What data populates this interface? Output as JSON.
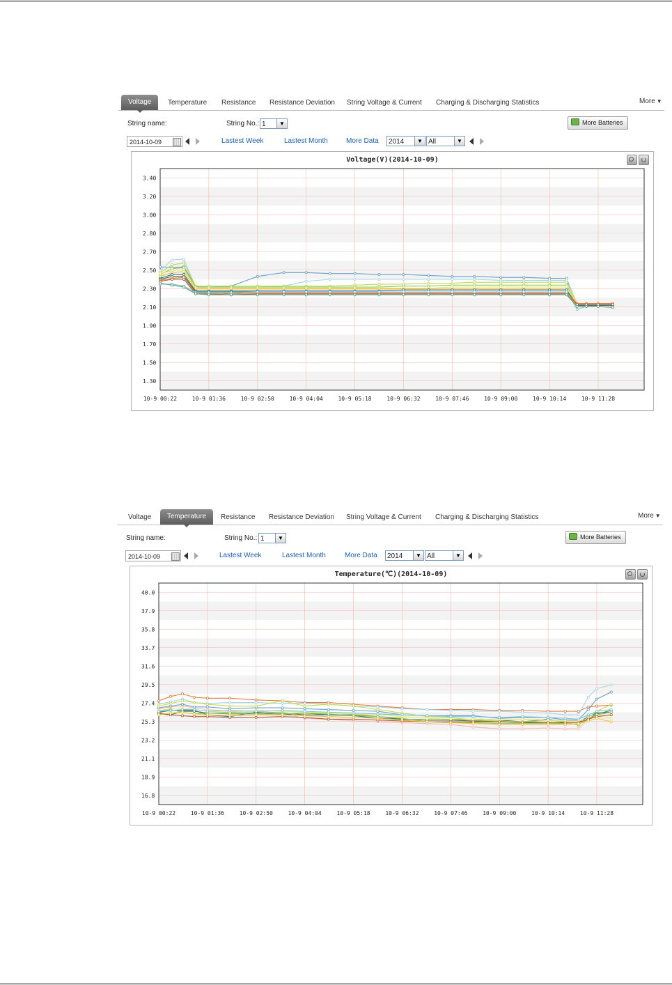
{
  "tabs": [
    "Voltage",
    "Temperature",
    "Resistance",
    "Resistance Deviation",
    "String Voltage & Current",
    "Charging & Discharging Statistics"
  ],
  "more_label": "More",
  "string_name_label": "String name:",
  "string_no_label": "String No.:",
  "string_no_value": "1",
  "more_batteries_label": "More Batteries",
  "date_value": "2014-10-09",
  "links": {
    "week": "Lastest Week",
    "month": "Lastest Month",
    "more_data": "More Data"
  },
  "year_value": "2014",
  "filter_value": "All",
  "panels": [
    {
      "active_tab": "Voltage",
      "chart_title": "Voltage(V)(2014-10-09)"
    },
    {
      "active_tab": "Temperature",
      "chart_title": "Temperature(℃)(2014-10-09)"
    }
  ],
  "colors": {
    "grid_red": "#f2b8b0",
    "band": "#f3f3f3",
    "link": "#1a5fa8",
    "tab_active": "#6e6e6e"
  },
  "icons": {
    "zoom": "zoom-icon",
    "refresh": "refresh-icon",
    "calendar": "calendar-icon",
    "battery": "battery-icon"
  },
  "chart_data": [
    {
      "type": "line",
      "title": "Voltage(V)(2014-10-09)",
      "y_ticks": [
        "3.40",
        "3.20",
        "3.00",
        "2.80",
        "2.70",
        "2.50",
        "2.30",
        "2.10",
        "1.90",
        "1.70",
        "1.50",
        "1.30"
      ],
      "x_ticks": [
        "10-9 00:22",
        "10-9 01:36",
        "10-9 02:50",
        "10-9 04:04",
        "10-9 05:18",
        "10-9 06:32",
        "10-9 07:46",
        "10-9 09:00",
        "10-9 10:14",
        "10-9 11:28"
      ],
      "grid": true,
      "x": [
        "00:22",
        "00:40",
        "00:58",
        "01:16",
        "01:36",
        "02:10",
        "02:50",
        "03:30",
        "04:04",
        "04:40",
        "05:18",
        "05:55",
        "06:32",
        "07:10",
        "07:46",
        "08:20",
        "09:00",
        "09:35",
        "10:14",
        "10:40",
        "10:56",
        "11:10",
        "11:28",
        "11:50"
      ],
      "series": [
        {
          "color": "#6a9fc9",
          "values": [
            2.48,
            2.47,
            2.48,
            2.28,
            2.27,
            2.28,
            2.38,
            2.42,
            2.42,
            2.41,
            2.41,
            2.4,
            2.4,
            2.39,
            2.38,
            2.38,
            2.37,
            2.37,
            2.36,
            2.36,
            2.08,
            2.08,
            2.08,
            2.08
          ]
        },
        {
          "color": "#a8d4e8",
          "values": [
            2.44,
            2.55,
            2.56,
            2.27,
            2.27,
            2.27,
            2.27,
            2.28,
            2.33,
            2.35,
            2.35,
            2.35,
            2.35,
            2.35,
            2.35,
            2.35,
            2.34,
            2.34,
            2.34,
            2.34,
            2.1,
            2.1,
            2.1,
            2.1
          ]
        },
        {
          "color": "#c2d94c",
          "values": [
            2.42,
            2.5,
            2.52,
            2.28,
            2.28,
            2.28,
            2.28,
            2.28,
            2.28,
            2.28,
            2.29,
            2.3,
            2.3,
            2.31,
            2.31,
            2.32,
            2.32,
            2.32,
            2.32,
            2.32,
            2.1,
            2.1,
            2.1,
            2.1
          ]
        },
        {
          "color": "#8fc85a",
          "values": [
            2.4,
            2.46,
            2.47,
            2.27,
            2.27,
            2.27,
            2.27,
            2.27,
            2.27,
            2.27,
            2.27,
            2.27,
            2.28,
            2.28,
            2.29,
            2.29,
            2.29,
            2.29,
            2.29,
            2.29,
            2.09,
            2.09,
            2.09,
            2.09
          ]
        },
        {
          "color": "#e8e86a",
          "values": [
            2.41,
            2.44,
            2.45,
            2.26,
            2.26,
            2.26,
            2.26,
            2.26,
            2.26,
            2.26,
            2.26,
            2.26,
            2.26,
            2.26,
            2.27,
            2.27,
            2.27,
            2.27,
            2.27,
            2.27,
            2.1,
            2.1,
            2.1,
            2.1
          ]
        },
        {
          "color": "#f0c040",
          "values": [
            2.38,
            2.42,
            2.43,
            2.25,
            2.25,
            2.25,
            2.25,
            2.25,
            2.25,
            2.25,
            2.25,
            2.25,
            2.25,
            2.25,
            2.25,
            2.25,
            2.25,
            2.25,
            2.25,
            2.25,
            2.09,
            2.09,
            2.09,
            2.09
          ]
        },
        {
          "color": "#2e6e9e",
          "values": [
            2.36,
            2.4,
            2.4,
            2.23,
            2.23,
            2.23,
            2.23,
            2.23,
            2.23,
            2.23,
            2.23,
            2.23,
            2.24,
            2.24,
            2.24,
            2.24,
            2.24,
            2.24,
            2.24,
            2.24,
            2.08,
            2.08,
            2.08,
            2.08
          ]
        },
        {
          "color": "#3f7f3f",
          "values": [
            2.35,
            2.38,
            2.38,
            2.22,
            2.22,
            2.22,
            2.22,
            2.22,
            2.22,
            2.22,
            2.22,
            2.22,
            2.22,
            2.22,
            2.22,
            2.22,
            2.22,
            2.22,
            2.22,
            2.22,
            2.09,
            2.09,
            2.09,
            2.09
          ]
        },
        {
          "color": "#e07a40",
          "values": [
            2.34,
            2.36,
            2.37,
            2.21,
            2.21,
            2.2,
            2.21,
            2.21,
            2.21,
            2.21,
            2.21,
            2.21,
            2.21,
            2.21,
            2.21,
            2.21,
            2.21,
            2.21,
            2.21,
            2.21,
            2.1,
            2.1,
            2.1,
            2.1
          ]
        },
        {
          "color": "#b05a30",
          "values": [
            2.33,
            2.35,
            2.35,
            2.2,
            2.2,
            2.19,
            2.2,
            2.2,
            2.2,
            2.2,
            2.2,
            2.2,
            2.2,
            2.2,
            2.2,
            2.2,
            2.2,
            2.2,
            2.2,
            2.2,
            2.09,
            2.09,
            2.09,
            2.09
          ]
        },
        {
          "color": "#7bc4d6",
          "values": [
            2.3,
            2.3,
            2.28,
            2.21,
            2.21,
            2.21,
            2.22,
            2.22,
            2.22,
            2.22,
            2.22,
            2.22,
            2.22,
            2.22,
            2.22,
            2.22,
            2.22,
            2.22,
            2.22,
            2.22,
            2.04,
            2.07,
            2.07,
            2.06
          ]
        },
        {
          "color": "#5a9e7a",
          "values": [
            2.31,
            2.29,
            2.27,
            2.2,
            2.19,
            2.19,
            2.19,
            2.19,
            2.19,
            2.19,
            2.19,
            2.19,
            2.19,
            2.19,
            2.19,
            2.19,
            2.19,
            2.19,
            2.19,
            2.19,
            2.07,
            2.07,
            2.07,
            2.06
          ]
        }
      ]
    },
    {
      "type": "line",
      "title": "Temperature(℃)(2014-10-09)",
      "y_ticks": [
        "40.0",
        "37.9",
        "35.8",
        "33.7",
        "31.6",
        "29.5",
        "27.4",
        "25.3",
        "23.2",
        "21.1",
        "18.9",
        "16.8"
      ],
      "x_ticks": [
        "10-9 00:22",
        "10-9 01:36",
        "10-9 02:50",
        "10-9 04:04",
        "10-9 05:18",
        "10-9 06:32",
        "10-9 07:46",
        "10-9 09:00",
        "10-9 10:14",
        "10-9 11:28"
      ],
      "grid": true,
      "x": [
        "00:22",
        "00:40",
        "00:58",
        "01:16",
        "01:36",
        "02:10",
        "02:50",
        "03:30",
        "04:04",
        "04:40",
        "05:18",
        "05:55",
        "06:32",
        "07:10",
        "07:46",
        "08:20",
        "09:00",
        "09:35",
        "10:14",
        "10:40",
        "11:00",
        "11:15",
        "11:28",
        "11:50"
      ],
      "series": [
        {
          "color": "#e07a40",
          "values": [
            27.6,
            28.1,
            28.4,
            28.0,
            27.9,
            27.9,
            27.7,
            27.6,
            27.4,
            27.4,
            27.2,
            27.0,
            26.8,
            26.6,
            26.6,
            26.6,
            26.5,
            26.5,
            26.4,
            26.4,
            26.4,
            26.9,
            27.0,
            27.1
          ]
        },
        {
          "color": "#f2b8b0",
          "values": [
            26.7,
            26.9,
            27.0,
            26.8,
            26.6,
            26.4,
            26.4,
            26.2,
            25.6,
            25.5,
            25.3,
            25.2,
            25.1,
            25.0,
            24.9,
            24.6,
            24.4,
            24.4,
            24.5,
            24.4,
            24.4,
            25.5,
            26.0,
            26.3
          ]
        },
        {
          "color": "#a8d4e8",
          "values": [
            27.2,
            27.5,
            27.8,
            27.4,
            27.3,
            27.4,
            27.4,
            27.3,
            27.3,
            27.2,
            27.0,
            26.9,
            26.7,
            26.6,
            26.5,
            26.4,
            26.4,
            26.3,
            26.2,
            26.0,
            26.0,
            28.0,
            29.0,
            29.4
          ]
        },
        {
          "color": "#6a9fc9",
          "values": [
            26.8,
            27.0,
            27.2,
            26.9,
            26.9,
            26.7,
            26.8,
            26.8,
            26.7,
            26.6,
            26.5,
            26.4,
            26.0,
            25.9,
            25.9,
            25.9,
            25.6,
            25.7,
            25.7,
            25.4,
            25.4,
            26.6,
            27.8,
            28.6
          ]
        },
        {
          "color": "#2e6e9e",
          "values": [
            26.3,
            26.5,
            26.5,
            26.5,
            26.0,
            25.8,
            26.3,
            26.0,
            26.2,
            26.0,
            25.9,
            25.6,
            25.5,
            25.4,
            25.4,
            25.5,
            25.4,
            25.2,
            25.5,
            25.1,
            25.1,
            25.8,
            26.2,
            26.3
          ]
        },
        {
          "color": "#3f7f3f",
          "values": [
            26.1,
            26.0,
            26.4,
            26.4,
            26.2,
            26.2,
            26.2,
            26.2,
            26.0,
            26.0,
            26.0,
            25.8,
            25.5,
            25.4,
            25.4,
            25.3,
            25.3,
            25.2,
            25.1,
            25.0,
            24.9,
            25.5,
            26.1,
            26.5
          ]
        },
        {
          "color": "#c2d94c",
          "values": [
            27.0,
            27.3,
            27.6,
            27.4,
            27.2,
            27.0,
            27.0,
            27.6,
            27.0,
            27.2,
            27.0,
            26.6,
            26.2,
            25.8,
            25.7,
            25.4,
            25.3,
            25.2,
            25.4,
            25.2,
            24.8,
            25.7,
            26.4,
            27.2
          ]
        },
        {
          "color": "#e8e86a",
          "values": [
            26.5,
            26.7,
            26.8,
            26.6,
            26.4,
            26.3,
            26.5,
            26.4,
            26.3,
            26.2,
            26.1,
            26.0,
            25.8,
            25.6,
            25.5,
            25.5,
            25.4,
            25.5,
            25.4,
            25.3,
            25.3,
            25.5,
            25.8,
            25.6
          ]
        },
        {
          "color": "#8fc85a",
          "values": [
            26.4,
            26.6,
            26.3,
            26.1,
            26.2,
            26.1,
            26.1,
            26.1,
            26.2,
            26.1,
            25.9,
            25.8,
            25.6,
            25.2,
            25.1,
            25.1,
            25.0,
            25.0,
            25.0,
            25.0,
            24.9,
            25.5,
            26.0,
            26.3
          ]
        },
        {
          "color": "#b05a30",
          "values": [
            26.2,
            26.0,
            25.9,
            25.8,
            25.8,
            25.7,
            25.7,
            25.8,
            25.7,
            25.5,
            25.5,
            25.4,
            25.3,
            25.2,
            25.2,
            25.2,
            25.2,
            25.1,
            25.1,
            25.1,
            25.1,
            25.5,
            25.8,
            26.0
          ]
        },
        {
          "color": "#f0c040",
          "values": [
            26.0,
            26.2,
            26.3,
            26.1,
            26.0,
            25.9,
            26.0,
            26.0,
            25.9,
            25.8,
            25.7,
            25.6,
            25.4,
            25.2,
            25.1,
            25.0,
            24.9,
            24.9,
            24.9,
            24.9,
            25.0,
            25.3,
            25.6,
            25.2
          ]
        },
        {
          "color": "#7bc4d6",
          "values": [
            26.4,
            26.5,
            26.6,
            26.6,
            26.4,
            26.5,
            26.4,
            26.5,
            26.4,
            26.3,
            26.2,
            26.1,
            26.0,
            25.9,
            25.8,
            25.8,
            25.7,
            25.8,
            25.7,
            25.6,
            25.5,
            26.0,
            26.4,
            26.6
          ]
        }
      ]
    }
  ]
}
